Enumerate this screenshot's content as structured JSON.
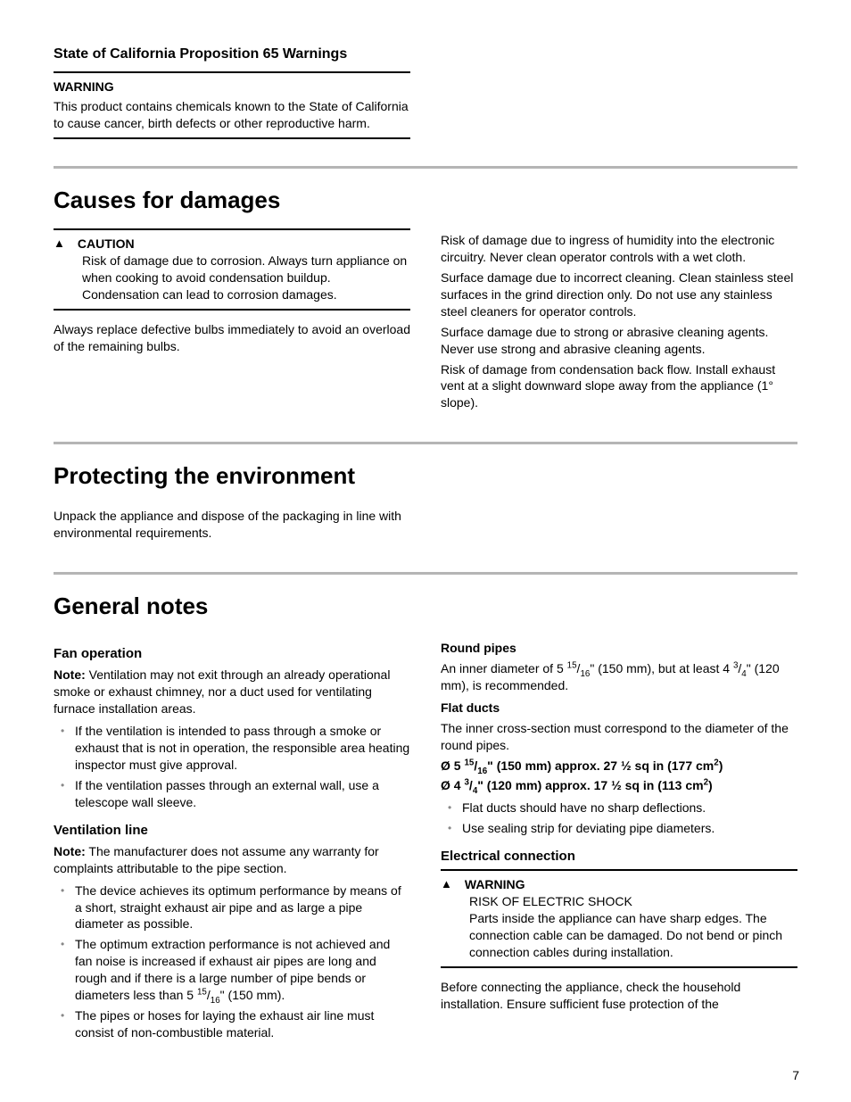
{
  "prop65": {
    "heading": "State of California Proposition 65 Warnings",
    "warning_label": "WARNING",
    "text": "This product contains chemicals known to the State of California to cause cancer, birth defects or other reproductive harm."
  },
  "causes": {
    "heading": "Causes for damages",
    "caution_label": "CAUTION",
    "caution_text": "Risk of damage due to corrosion. Always turn appliance on when cooking to avoid condensation buildup. Condensation can lead to corrosion damages.",
    "left_para": "Always replace defective bulbs immediately to avoid an overload of the remaining bulbs.",
    "right_para1": "Risk of damage due to ingress of humidity into the electronic circuitry. Never clean operator controls with a wet cloth.",
    "right_para2": "Surface damage due to incorrect cleaning. Clean stainless steel surfaces in the grind direction only. Do not use any stainless steel cleaners for operator controls.",
    "right_para3": "Surface damage due to strong or abrasive cleaning agents. Never use strong and abrasive cleaning agents.",
    "right_para4": "Risk of damage from condensation back flow. Install exhaust vent at a slight downward slope away from the appliance (1° slope)."
  },
  "env": {
    "heading": "Protecting the environment",
    "text": "Unpack the appliance and dispose of the packaging in line with environmental requirements."
  },
  "general": {
    "heading": "General notes",
    "fan": {
      "heading": "Fan operation",
      "note_label": "Note:",
      "note_text": " Ventilation may not exit through an already operational smoke or exhaust chimney, nor a duct used for ventilating furnace installation areas.",
      "bullet1": "If the ventilation is intended to pass through a smoke or exhaust that is not in operation, the responsible area heating inspector must give approval.",
      "bullet2": "If the ventilation passes through an external wall, use a telescope wall sleeve."
    },
    "vent": {
      "heading": "Ventilation line",
      "note_label": "Note:",
      "note_text": " The manufacturer does not assume any warranty for complaints attributable to the pipe section.",
      "bullet1": "The device achieves its optimum performance by means of a short, straight exhaust air pipe and as large a pipe diameter as possible.",
      "bullet3": "The pipes or hoses for laying the exhaust air line must consist of non-combustible material."
    },
    "round": {
      "heading": "Round pipes"
    },
    "flat": {
      "heading": "Flat ducts",
      "text": "The inner cross-section must correspond to the diameter of the round pipes.",
      "bullet1": "Flat ducts should have no sharp deflections.",
      "bullet2": "Use sealing strip for deviating pipe diameters."
    },
    "elec": {
      "heading": "Electrical connection",
      "warning_label": "WARNING",
      "risk": "RISK OF ELECTRIC SHOCK",
      "warning_text": "Parts inside the appliance can have sharp edges. The connection cable can be damaged. Do not bend or pinch connection cables during installation.",
      "after": "Before connecting the appliance, check the household installation. Ensure sufficient fuse protection of the"
    }
  },
  "page_number": "7"
}
